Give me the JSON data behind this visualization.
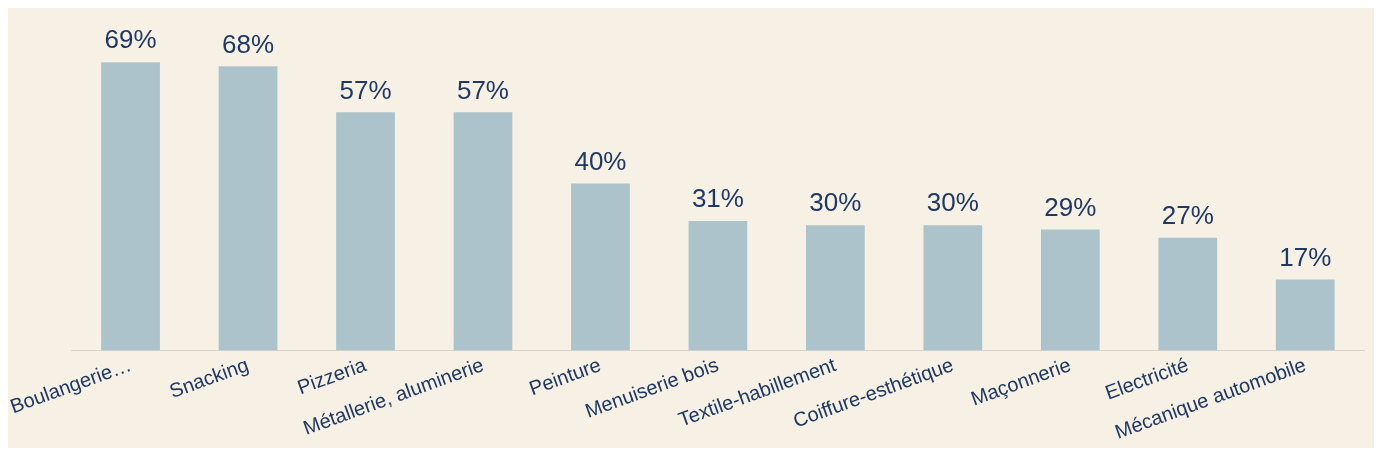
{
  "chart_data": {
    "type": "bar",
    "categories": [
      "Boulangerie…",
      "Snacking",
      "Pizzeria",
      "Métallerie, aluminerie",
      "Peinture",
      "Menuiserie bois",
      "Textile-habillement",
      "Coiffure-esthétique",
      "Maçonnerie",
      "Electricité",
      "Mécanique automobile"
    ],
    "values": [
      69,
      68,
      57,
      57,
      40,
      31,
      30,
      30,
      29,
      27,
      17
    ],
    "value_labels": [
      "69%",
      "68%",
      "57%",
      "57%",
      "40%",
      "31%",
      "30%",
      "30%",
      "29%",
      "27%",
      "17%"
    ],
    "color": "#adc3cc"
  }
}
